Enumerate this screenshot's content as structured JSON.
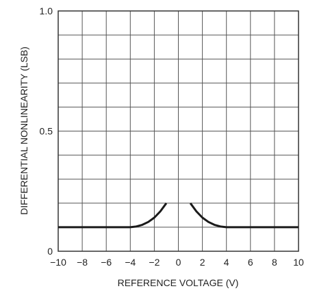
{
  "chart_data": {
    "type": "line",
    "xlabel": "REFERENCE VOLTAGE (V)",
    "ylabel": "DIFFERENTIAL NONLINEARITY (LSB)",
    "xlim": [
      -10,
      10
    ],
    "ylim": [
      0,
      1.0
    ],
    "x_ticks": [
      -10,
      -8,
      -6,
      -4,
      -2,
      0,
      2,
      4,
      6,
      8,
      10
    ],
    "x_tick_labels": [
      "−10",
      "−8",
      "−6",
      "−4",
      "−2",
      "0",
      "2",
      "4",
      "6",
      "8",
      "10"
    ],
    "y_ticks": [
      0,
      0.5,
      1.0
    ],
    "y_tick_labels": [
      "0",
      "0.5",
      "1.0"
    ],
    "grid": true,
    "grid_divisions": {
      "x": 10,
      "y": 10
    },
    "series": [
      {
        "x": [
          -10,
          -6,
          -4,
          -3.5,
          -3,
          -2.5,
          -2,
          -1.5,
          -1
        ],
        "y": [
          0.1,
          0.1,
          0.1,
          0.103,
          0.11,
          0.122,
          0.14,
          0.166,
          0.2
        ]
      },
      {
        "x": [
          1,
          1.5,
          2,
          2.5,
          3,
          3.5,
          4,
          6,
          10
        ],
        "y": [
          0.2,
          0.166,
          0.14,
          0.122,
          0.11,
          0.103,
          0.1,
          0.1,
          0.1
        ]
      }
    ]
  }
}
